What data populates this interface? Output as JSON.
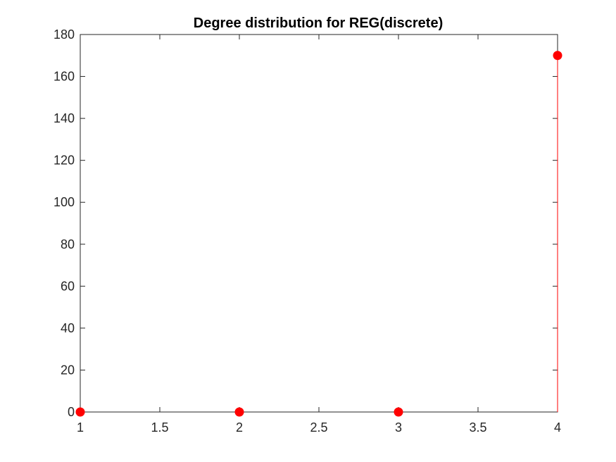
{
  "chart_data": {
    "type": "stem",
    "title": "Degree distribution for REG(discrete)",
    "xlabel": "",
    "ylabel": "",
    "x": [
      1,
      2,
      3,
      4
    ],
    "y": [
      0,
      0,
      0,
      170
    ],
    "xlim": [
      1,
      4
    ],
    "ylim": [
      0,
      180
    ],
    "xticks": [
      1,
      1.5,
      2,
      2.5,
      3,
      3.5,
      4
    ],
    "xtick_labels": [
      "1",
      "1.5",
      "2",
      "2.5",
      "3",
      "3.5",
      "4"
    ],
    "yticks": [
      0,
      20,
      40,
      60,
      80,
      100,
      120,
      140,
      160,
      180
    ],
    "ytick_labels": [
      "0",
      "20",
      "40",
      "60",
      "80",
      "100",
      "120",
      "140",
      "160",
      "180"
    ],
    "grid": false,
    "box": true,
    "marker": "filled-circle",
    "series_color": "#ff0000",
    "axis_color": "#262626"
  }
}
